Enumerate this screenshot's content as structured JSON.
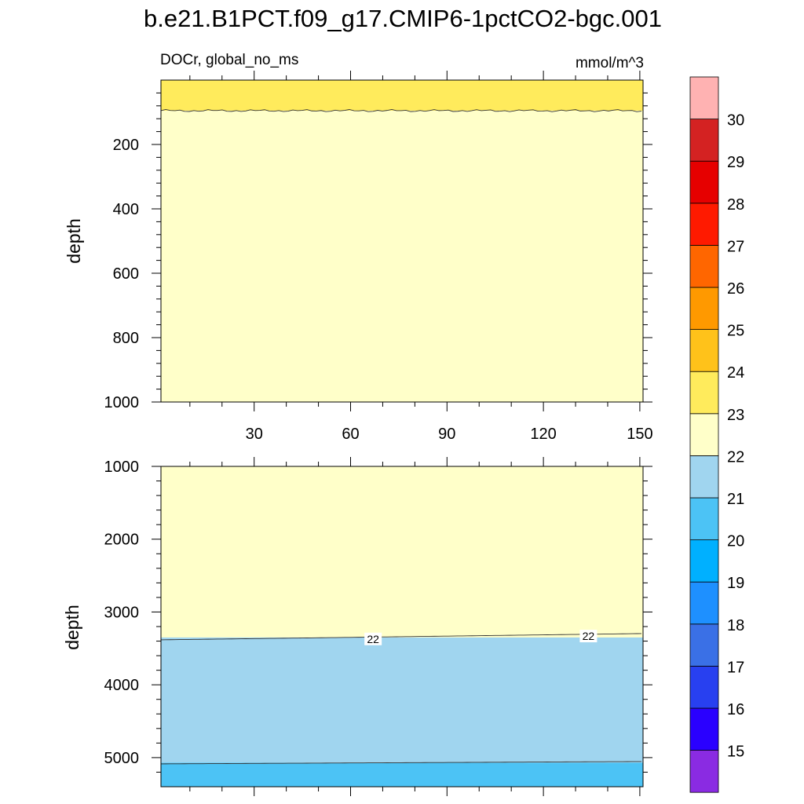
{
  "chart_data": {
    "type": "heatmap",
    "title": "b.e21.B1PCT.f09_g17.CMIP6-1pctCO2-bgc.001",
    "variable_label": "DOCr, global_no_ms",
    "units_label": "mmol/m^3",
    "x_ticks": [
      "30",
      "60",
      "90",
      "120",
      "150"
    ],
    "x_values": [
      30,
      60,
      90,
      120,
      150
    ],
    "xlim": [
      1,
      151
    ],
    "colorbar": {
      "levels": [
        "15",
        "16",
        "17",
        "18",
        "19",
        "20",
        "21",
        "22",
        "23",
        "24",
        "25",
        "26",
        "27",
        "28",
        "29",
        "30"
      ],
      "colors": [
        "#8a2be2",
        "#2a00ff",
        "#2840f0",
        "#3a70e6",
        "#1e90ff",
        "#00b0ff",
        "#4cc3f5",
        "#a0d5ef",
        "#ffffc9",
        "#ffeb5c",
        "#ffc21a",
        "#ff9900",
        "#ff6600",
        "#ff1a00",
        "#e60000",
        "#d42222",
        "#ffb2b2"
      ]
    },
    "panels": [
      {
        "name": "upper",
        "ylabel": "depth",
        "ylim": [
          0,
          1000
        ],
        "y_ticks": [
          "200",
          "400",
          "600",
          "800",
          "1000"
        ],
        "y_values": [
          200,
          400,
          600,
          800,
          1000
        ],
        "bands": [
          {
            "range": "23-24",
            "color": "#ffeb5c",
            "top": 0,
            "bottom": 95
          },
          {
            "range": "22-23",
            "color": "#ffffc9",
            "top": 95,
            "bottom": 1000
          }
        ]
      },
      {
        "name": "lower",
        "ylabel": "depth",
        "ylim": [
          1000,
          5400
        ],
        "y_ticks": [
          "1000",
          "2000",
          "3000",
          "4000",
          "5000"
        ],
        "y_values": [
          1000,
          2000,
          3000,
          4000,
          5000
        ],
        "bands": [
          {
            "range": "22-23",
            "color": "#ffffc9",
            "top": 1000,
            "bottom": 3350
          },
          {
            "range": "21-22",
            "color": "#a0d5ef",
            "top": 3350,
            "bottom": 5070
          },
          {
            "range": "20-21",
            "color": "#4cc3f5",
            "top": 5070,
            "bottom": 5400
          }
        ],
        "contour_labels": [
          {
            "text": "22",
            "x": 67,
            "y": 3370
          },
          {
            "text": "22",
            "x": 134,
            "y": 3330
          }
        ]
      }
    ]
  }
}
